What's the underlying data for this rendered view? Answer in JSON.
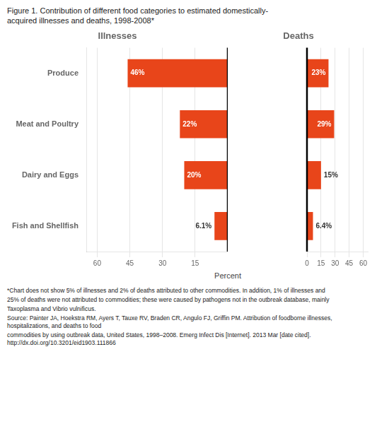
{
  "chart_data": [
    {
      "type": "bar",
      "orientation": "horizontal",
      "title": [
        "Figure 1.  Contribution of different food categories to estimated domestically-",
        "acquired illnesses and deaths, 1998-2008*"
      ],
      "subtitle": "Illnesses",
      "xlabel": "Percent",
      "categories": [
        "Produce",
        "Meat and Poultry",
        "Dairy and Eggs",
        "Fish and Shellfish"
      ],
      "values": [
        46,
        22,
        20,
        6.1
      ],
      "value_labels": [
        "46%",
        "22%",
        "20%",
        "6.1%"
      ],
      "data_labels": true,
      "color": "#E8451A",
      "xlim": [
        65,
        0
      ],
      "xticks": [
        60,
        45,
        30,
        15
      ],
      "grid": true,
      "annotations": [
        "*Chart does not show 5% of illnesses and 2% of deaths attributed to other commodities. In addition, 1% of illnesses and",
        "25% of deaths were not attributed to commodities; these were caused by pathogens not in the outbreak database, mainly",
        "Taxoplasma and Vibrio vulnificus.",
        "Source: Painter JA, Hoekstra RM, Ayers T, Tauxe RV, Braden CR, Angulo FJ, Griffin PM. Attribution of foodborne illnesses, hospitalizations, and deaths to food",
        "commodities by using outbreak data, United States, 1998–2008. Emerg Infect Dis [Internet]. 2013 Mar [date cited]. http://dx.doi.org/10.3201/eid1903.111866"
      ]
    },
    {
      "type": "bar",
      "orientation": "horizontal",
      "subtitle": "Deaths",
      "categories": [
        "Produce",
        "Meat and Poultry",
        "Dairy and Eggs",
        "Fish and Shellfish"
      ],
      "values": [
        23,
        29,
        15,
        6.4
      ],
      "value_labels": [
        "23%",
        "29%",
        "15%",
        "6.4%"
      ],
      "data_labels": true,
      "color": "#E8451A",
      "xlim": [
        0,
        65
      ],
      "xticks": [
        0,
        15,
        30,
        45,
        60
      ],
      "grid": true,
      "tick_labels": "x"
    }
  ]
}
